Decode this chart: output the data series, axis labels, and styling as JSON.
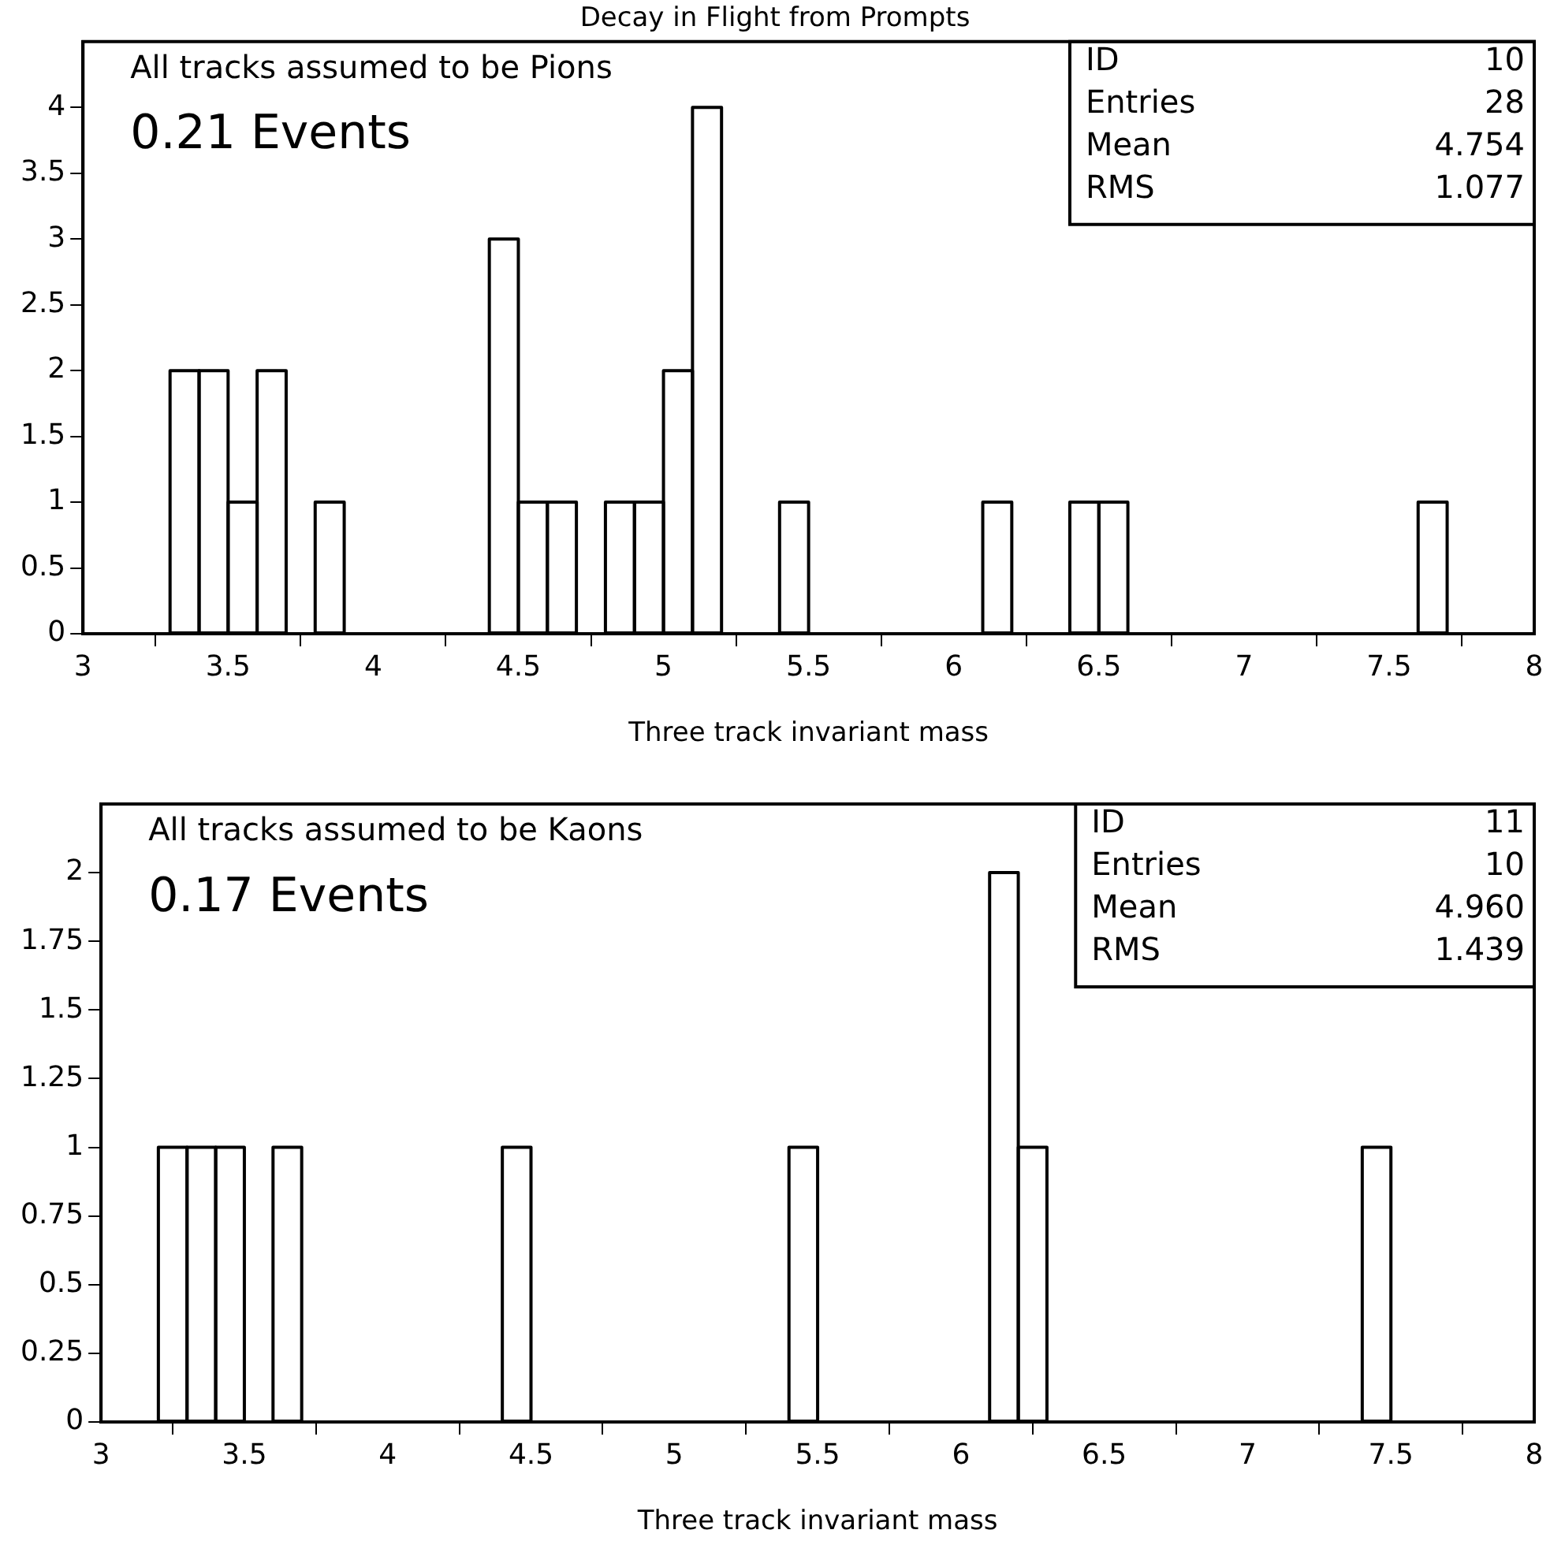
{
  "chart_data": [
    {
      "type": "histogram",
      "title": "Decay in Flight from Prompts",
      "xlabel": "Three track invariant mass",
      "bins": [
        3,
        3.1,
        3.2,
        3.3,
        3.4,
        3.5,
        3.6,
        3.7,
        3.8,
        3.9,
        4,
        4.1,
        4.2,
        4.3,
        4.4,
        4.5,
        4.6,
        4.7,
        4.8,
        4.9,
        5,
        5.1,
        5.2,
        5.3,
        5.4,
        5.5,
        5.6,
        5.7,
        5.8,
        5.9,
        6,
        6.1,
        6.2,
        6.3,
        6.4,
        6.5,
        6.6,
        6.7,
        6.8,
        6.9,
        7,
        7.1,
        7.2,
        7.3,
        7.4,
        7.5,
        7.6,
        7.7,
        7.8,
        7.9,
        8
      ],
      "values": [
        0,
        0,
        0,
        2,
        2,
        1,
        2,
        0,
        1,
        0,
        0,
        0,
        0,
        0,
        3,
        1,
        1,
        0,
        1,
        1,
        2,
        4,
        0,
        0,
        1,
        0,
        0,
        0,
        0,
        0,
        0,
        1,
        0,
        0,
        1,
        1,
        0,
        0,
        0,
        0,
        0,
        0,
        0,
        0,
        0,
        0,
        1,
        0,
        0,
        0
      ],
      "color": "#000000",
      "xlim": [
        3,
        8
      ],
      "xticks": [
        3,
        3.5,
        4,
        4.5,
        5,
        5.5,
        6,
        6.5,
        7,
        7.5,
        8
      ],
      "ylim": [
        0,
        4.5
      ],
      "yticks": [
        0,
        0.5,
        1,
        1.5,
        2,
        2.5,
        3,
        3.5,
        4
      ],
      "grid": false,
      "legend": false,
      "annotations": [
        "All tracks assumed to be Pions",
        "0.21 Events",
        "ID",
        "10",
        "Entries",
        "28",
        "Mean",
        "4.754",
        "RMS",
        "1.077"
      ]
    },
    {
      "type": "histogram",
      "xlabel": "Three track invariant mass",
      "bins": [
        3,
        3.1,
        3.2,
        3.3,
        3.4,
        3.5,
        3.6,
        3.7,
        3.8,
        3.9,
        4,
        4.1,
        4.2,
        4.3,
        4.4,
        4.5,
        4.6,
        4.7,
        4.8,
        4.9,
        5,
        5.1,
        5.2,
        5.3,
        5.4,
        5.5,
        5.6,
        5.7,
        5.8,
        5.9,
        6,
        6.1,
        6.2,
        6.3,
        6.4,
        6.5,
        6.6,
        6.7,
        6.8,
        6.9,
        7,
        7.1,
        7.2,
        7.3,
        7.4,
        7.5,
        7.6,
        7.7,
        7.8,
        7.9,
        8
      ],
      "values": [
        0,
        0,
        1,
        1,
        1,
        0,
        1,
        0,
        0,
        0,
        0,
        0,
        0,
        0,
        1,
        0,
        0,
        0,
        0,
        0,
        0,
        0,
        0,
        0,
        1,
        0,
        0,
        0,
        0,
        0,
        0,
        2,
        1,
        0,
        0,
        0,
        0,
        0,
        0,
        0,
        0,
        0,
        0,
        0,
        1,
        0,
        0,
        0,
        0,
        0
      ],
      "color": "#000000",
      "xlim": [
        3,
        8
      ],
      "xticks": [
        3,
        3.5,
        4,
        4.5,
        5,
        5.5,
        6,
        6.5,
        7,
        7.5,
        8
      ],
      "ylim": [
        0,
        2.25
      ],
      "yticks": [
        0,
        0.25,
        0.5,
        0.75,
        1,
        1.25,
        1.5,
        1.75,
        2
      ],
      "grid": false,
      "legend": false,
      "annotations": [
        "All tracks assumed to be Kaons",
        "0.17 Events",
        "ID",
        "11",
        "Entries",
        "10",
        "Mean",
        "4.960",
        "RMS",
        "1.439"
      ]
    }
  ]
}
